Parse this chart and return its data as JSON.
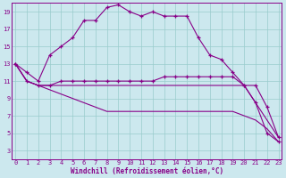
{
  "xlabel": "Windchill (Refroidissement éolien,°C)",
  "bg_color": "#cce8ee",
  "grid_color": "#99cccc",
  "line_color": "#880088",
  "xlim_min": 0,
  "xlim_max": 23,
  "ylim_min": 2,
  "ylim_max": 20,
  "yticks": [
    3,
    5,
    7,
    9,
    11,
    13,
    15,
    17,
    19
  ],
  "xticks": [
    0,
    1,
    2,
    3,
    4,
    5,
    6,
    7,
    8,
    9,
    10,
    11,
    12,
    13,
    14,
    15,
    16,
    17,
    18,
    19,
    20,
    21,
    22,
    23
  ],
  "hours": [
    0,
    1,
    2,
    3,
    4,
    5,
    6,
    7,
    8,
    9,
    10,
    11,
    12,
    13,
    14,
    15,
    16,
    17,
    18,
    19,
    20,
    21,
    22,
    23
  ],
  "series1": [
    13,
    12,
    11,
    14,
    15,
    16,
    18,
    18,
    19.5,
    19.8,
    19.0,
    18.5,
    19.0,
    18.5,
    18.5,
    18.5,
    16,
    14,
    13.5,
    12.0,
    10.5,
    8.5,
    5.0,
    4.0
  ],
  "series2": [
    13,
    11,
    10.5,
    10.5,
    11.0,
    11.0,
    11.0,
    11.0,
    11.0,
    11.0,
    11.0,
    11.0,
    11.0,
    11.5,
    11.5,
    11.5,
    11.5,
    11.5,
    11.5,
    11.5,
    10.5,
    10.5,
    8.0,
    4.5
  ],
  "series3": [
    13,
    11,
    10.5,
    10.5,
    10.5,
    10.5,
    10.5,
    10.5,
    10.5,
    10.5,
    10.5,
    10.5,
    10.5,
    10.5,
    10.5,
    10.5,
    10.5,
    10.5,
    10.5,
    10.5,
    10.5,
    8.5,
    6.5,
    4.5
  ],
  "series4": [
    13,
    11,
    10.5,
    10.0,
    9.5,
    9.0,
    8.5,
    8.0,
    7.5,
    7.5,
    7.5,
    7.5,
    7.5,
    7.5,
    7.5,
    7.5,
    7.5,
    7.5,
    7.5,
    7.5,
    7.0,
    6.5,
    5.5,
    4.0
  ]
}
